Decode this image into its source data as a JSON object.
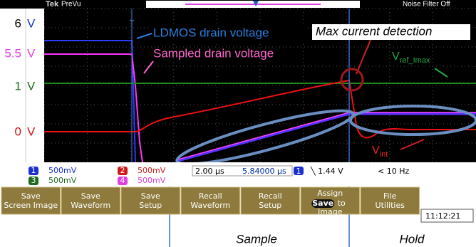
{
  "header": {
    "brand": "Tek",
    "mode": "PreVu",
    "filter": "Noise Filter Off"
  },
  "levels": [
    {
      "value": "6",
      "unit": "V"
    },
    {
      "value": "5.5",
      "unit": "V"
    },
    {
      "value": "1",
      "unit": "V"
    },
    {
      "value": "0",
      "unit": "V"
    }
  ],
  "annotations": {
    "ldmos": "LDMOS drain voltage",
    "sampled": "Sampled drain voltage",
    "max_current": "Max current detection",
    "vref": {
      "main": "V",
      "sub": "ref_Imax"
    },
    "vint": {
      "main": "V",
      "sub": "int"
    }
  },
  "channels": [
    {
      "number": "1",
      "scale": "500mV"
    },
    {
      "number": "2",
      "scale": "500mV"
    },
    {
      "number": "3",
      "scale": "500mV"
    },
    {
      "number": "4",
      "scale": "500mV"
    }
  ],
  "timebase": {
    "scale": "2.00 µs",
    "position": "5.84000 µs",
    "trigger_channel": "1",
    "trigger_level": "1.44 V",
    "frequency": "< 10 Hz"
  },
  "menu": [
    [
      "Save",
      "Screen Image"
    ],
    [
      "Save",
      "Waveform"
    ],
    [
      "Save",
      "Setup"
    ],
    [
      "Recall",
      "Waveform"
    ],
    [
      "Recall",
      "Setup"
    ],
    [
      "Assign",
      "Save",
      "to",
      "Image"
    ],
    [
      "File",
      "Utilities"
    ]
  ],
  "clock": "11:12:21",
  "phases": {
    "sample": "Sample",
    "hold": "Hold"
  }
}
